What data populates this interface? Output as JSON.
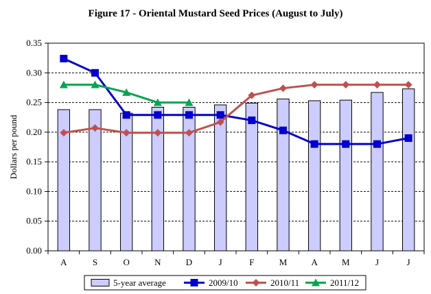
{
  "chart_data": {
    "type": "bar",
    "title": "Figure 17 - Oriental Mustard Seed Prices (August to July)",
    "xlabel": "",
    "ylabel": "Dollars per pound",
    "ylim": [
      0,
      0.35
    ],
    "yticks": [
      "0.00",
      "0.05",
      "0.10",
      "0.15",
      "0.20",
      "0.25",
      "0.30",
      "0.35"
    ],
    "categories": [
      "A",
      "S",
      "O",
      "N",
      "D",
      "J",
      "F",
      "M",
      "A",
      "M",
      "J",
      "J"
    ],
    "grid": "horizontal dashed",
    "legend_position": "bottom",
    "series": [
      {
        "name": "5-year average",
        "kind": "bar",
        "color": "#ccccff",
        "values": [
          0.238,
          0.238,
          0.232,
          0.242,
          0.242,
          0.246,
          0.249,
          0.256,
          0.253,
          0.254,
          0.267,
          0.273
        ]
      },
      {
        "name": "2009/10",
        "kind": "line",
        "marker": "square",
        "color": "#0000cc",
        "values": [
          0.324,
          0.3,
          0.229,
          0.229,
          0.229,
          0.229,
          0.22,
          0.203,
          0.18,
          0.18,
          0.18,
          0.19
        ]
      },
      {
        "name": "2010/11",
        "kind": "line",
        "marker": "diamond",
        "color": "#c0504d",
        "values": [
          0.199,
          0.207,
          0.199,
          0.199,
          0.199,
          0.217,
          0.262,
          0.274,
          0.28,
          0.28,
          0.28,
          0.28
        ]
      },
      {
        "name": "2011/12",
        "kind": "line",
        "marker": "triangle",
        "color": "#00a650",
        "values": [
          0.28,
          0.28,
          0.267,
          0.25,
          0.25,
          null,
          null,
          null,
          null,
          null,
          null,
          null
        ]
      }
    ]
  }
}
